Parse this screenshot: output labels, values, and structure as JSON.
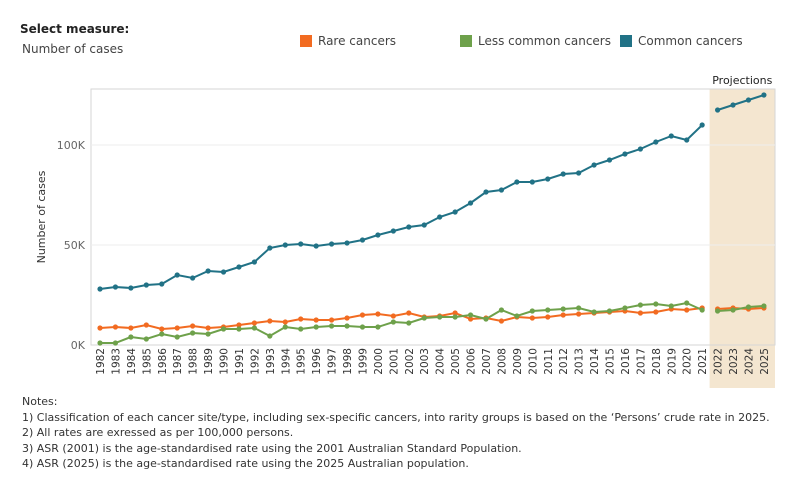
{
  "measure": {
    "label": "Select measure:",
    "value": "Number of cases"
  },
  "legend": [
    {
      "label": "Rare cancers",
      "color": "#f26b21"
    },
    {
      "label": "Less common cancers",
      "color": "#6ea14b"
    },
    {
      "label": "Common cancers",
      "color": "#217286"
    }
  ],
  "projections_label": "Projections",
  "notes": {
    "title": "Notes:",
    "items": [
      "1) Classification of each cancer site/type, including sex-specific cancers, into rarity groups is based on the ‘Persons’ crude rate in 2025.",
      "2) All rates are exressed as per 100,000 persons.",
      "3) ASR (2001) is the age-standardised rate using the 2001 Australian Standard Population.",
      "4) ASR (2025) is the age-standardised rate using the 2025 Australian population."
    ]
  },
  "chart_data": {
    "type": "line",
    "title": "",
    "xlabel": "",
    "ylabel": "Number of cases",
    "x": [
      1982,
      1983,
      1984,
      1985,
      1986,
      1987,
      1988,
      1989,
      1990,
      1991,
      1992,
      1993,
      1994,
      1995,
      1996,
      1997,
      1998,
      1999,
      2000,
      2001,
      2002,
      2003,
      2004,
      2005,
      2006,
      2007,
      2008,
      2009,
      2010,
      2011,
      2012,
      2013,
      2014,
      2015,
      2016,
      2017,
      2018,
      2019,
      2020,
      2021,
      2022,
      2023,
      2024,
      2025
    ],
    "ylim": [
      0,
      128000
    ],
    "yticks": [
      0,
      50000,
      100000
    ],
    "ytick_labels": [
      "0K",
      "50K",
      "100K"
    ],
    "grid": true,
    "legend_position": "top",
    "projection_start": 2022,
    "series": [
      {
        "name": "Rare cancers",
        "color": "#f26b21",
        "values": [
          8500,
          9000,
          8500,
          10000,
          8000,
          8500,
          9500,
          8500,
          9000,
          10000,
          11000,
          12000,
          11500,
          13000,
          12500,
          12500,
          13500,
          15000,
          15500,
          14500,
          16000,
          14000,
          14500,
          16000,
          13000,
          13500,
          12000,
          14000,
          13500,
          14000,
          15000,
          15500,
          16000,
          16500,
          17000,
          16000,
          16500,
          18000,
          17500,
          18500,
          18000,
          18500,
          18000,
          18500
        ]
      },
      {
        "name": "Less common cancers",
        "color": "#6ea14b",
        "values": [
          1000,
          1000,
          4000,
          3000,
          5500,
          4000,
          6000,
          5500,
          8000,
          8000,
          8500,
          4500,
          9000,
          8000,
          9000,
          9500,
          9500,
          9000,
          9000,
          11500,
          11000,
          13500,
          14000,
          14000,
          15000,
          13000,
          17500,
          14500,
          17000,
          17500,
          18000,
          18500,
          16500,
          17000,
          18500,
          20000,
          20500,
          19500,
          21000,
          17500,
          17000,
          17500,
          19000,
          19500
        ]
      },
      {
        "name": "Common cancers",
        "color": "#217286",
        "values": [
          28000,
          29000,
          28500,
          30000,
          30500,
          35000,
          33500,
          37000,
          36500,
          39000,
          41500,
          48500,
          50000,
          50500,
          49500,
          50500,
          51000,
          52500,
          55000,
          57000,
          59000,
          60000,
          64000,
          66500,
          71000,
          76500,
          77500,
          81500,
          81500,
          83000,
          85500,
          86000,
          90000,
          92500,
          95500,
          98000,
          101500,
          104500,
          102500,
          110000,
          117500,
          120000,
          122500,
          125000
        ]
      }
    ]
  }
}
